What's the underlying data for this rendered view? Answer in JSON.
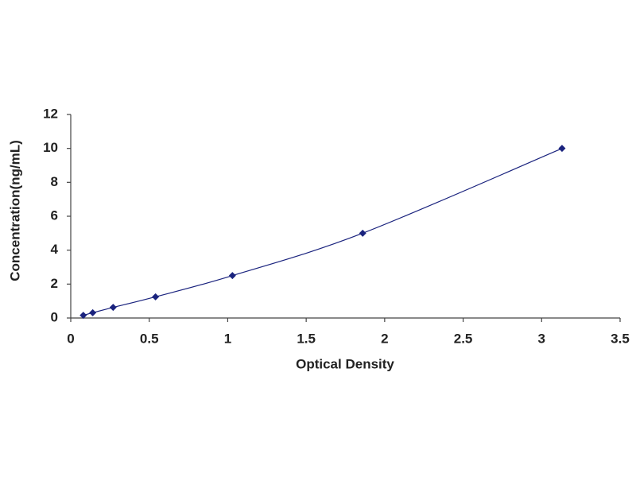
{
  "chart_data": {
    "type": "line",
    "x_label": "Optical Density",
    "y_label": "Concentration(ng/mL)",
    "x": [
      0.08,
      0.14,
      0.27,
      0.54,
      1.03,
      1.86,
      3.13
    ],
    "values": [
      0.156,
      0.312,
      0.625,
      1.25,
      2.5,
      5,
      10
    ],
    "color": "#1a237e",
    "marker": "diamond",
    "xlim": [
      0,
      3.5
    ],
    "xticks": [
      0,
      0.5,
      1,
      1.5,
      2,
      2.5,
      3,
      3.5
    ],
    "ylim": [
      0,
      12
    ],
    "yticks": [
      0,
      2,
      4,
      6,
      8,
      10,
      12
    ],
    "grid": false
  }
}
